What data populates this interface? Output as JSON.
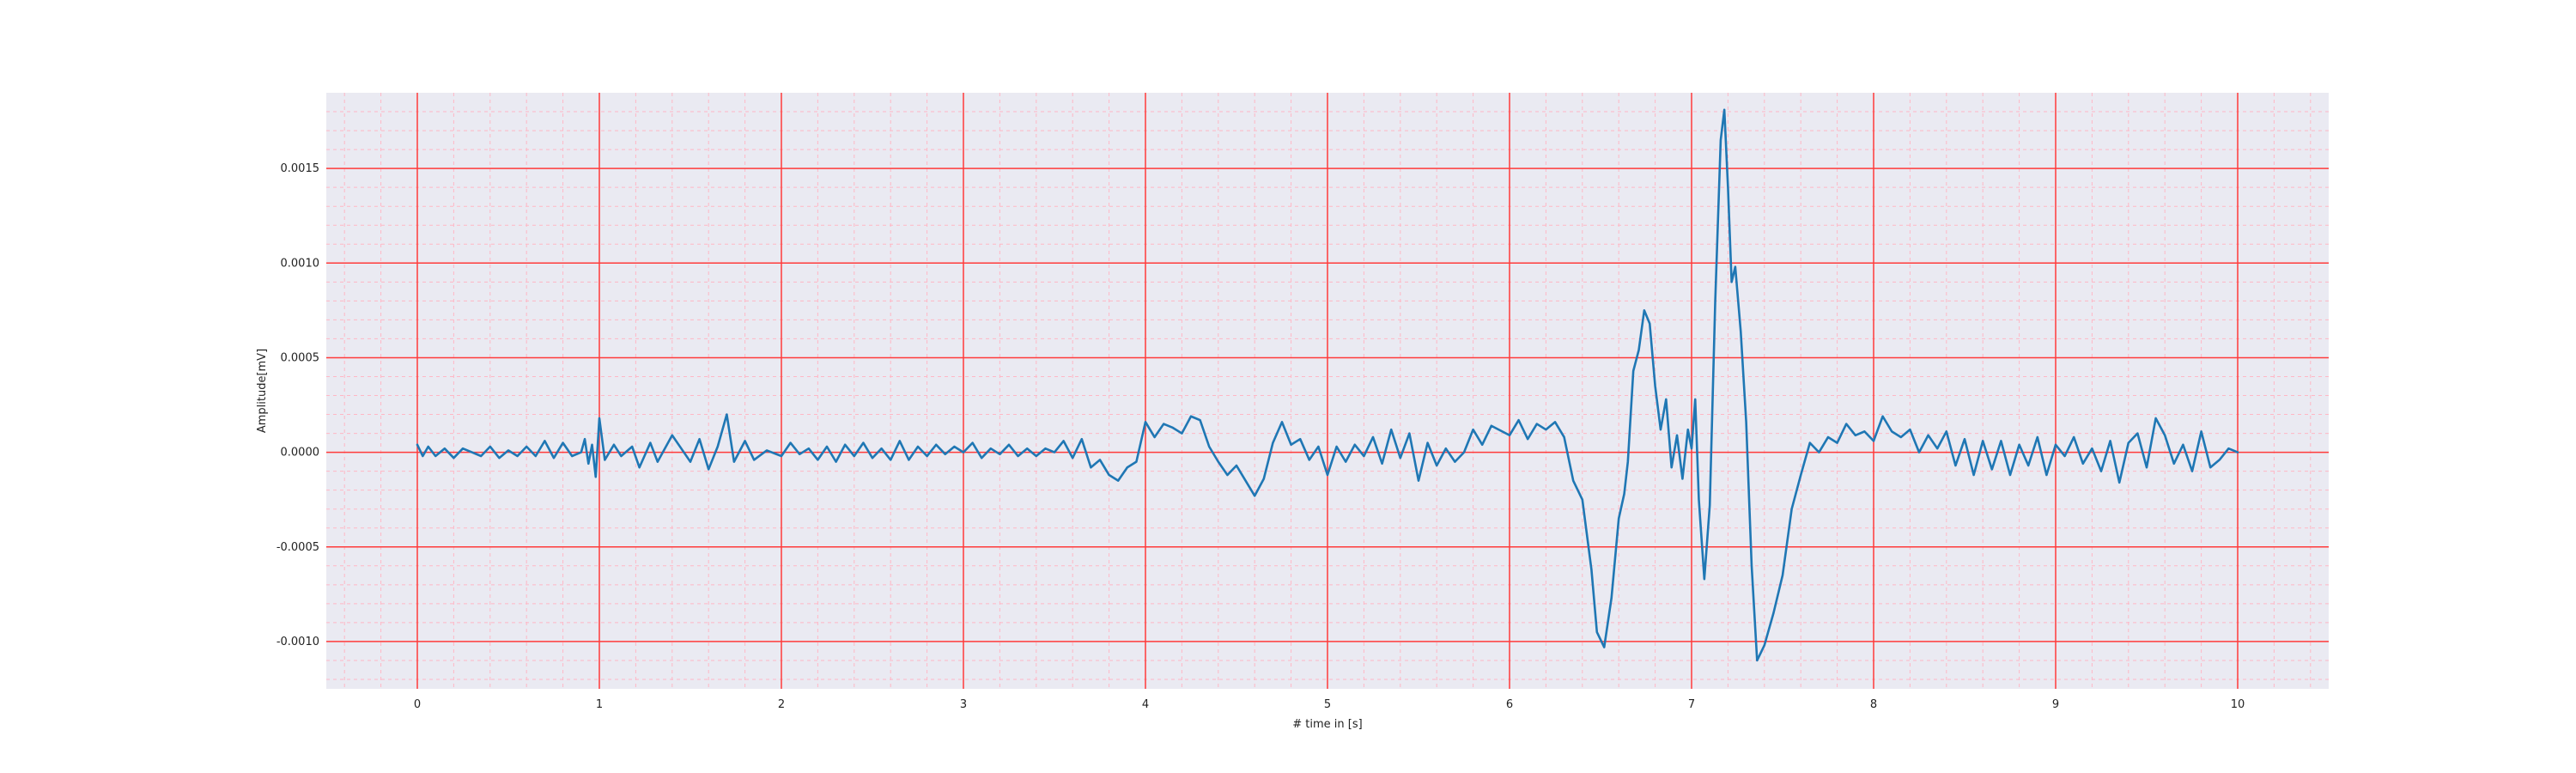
{
  "chart_data": {
    "type": "line",
    "title": "",
    "xlabel": "# time in [s]",
    "ylabel": "Amplitude[mV]",
    "xlim": [
      -0.5,
      10.5
    ],
    "ylim": [
      -0.00125,
      0.0019
    ],
    "x_ticks": [
      0,
      1,
      2,
      3,
      4,
      5,
      6,
      7,
      8,
      9,
      10
    ],
    "y_ticks": [
      -0.001,
      -0.0005,
      0.0,
      0.0005,
      0.001,
      0.0015
    ],
    "x_tick_labels": [
      "0",
      "1",
      "2",
      "3",
      "4",
      "5",
      "6",
      "7",
      "8",
      "9",
      "10"
    ],
    "y_tick_labels": [
      "-0.0010",
      "-0.0005",
      "0.0000",
      "0.0005",
      "0.0010",
      "0.0015"
    ],
    "grid": true,
    "minor_grid": true,
    "colors": {
      "background": "#eaeaf2",
      "major_grid": "#ff3b3b",
      "minor_grid": "#ffb7c5",
      "line": "#1f77b4"
    },
    "series": [
      {
        "name": "",
        "points": [
          [
            0.0,
            4e-05
          ],
          [
            0.03,
            -2e-05
          ],
          [
            0.06,
            3e-05
          ],
          [
            0.1,
            -2e-05
          ],
          [
            0.15,
            2e-05
          ],
          [
            0.2,
            -3e-05
          ],
          [
            0.25,
            2e-05
          ],
          [
            0.3,
            0.0
          ],
          [
            0.35,
            -2e-05
          ],
          [
            0.4,
            3e-05
          ],
          [
            0.45,
            -3e-05
          ],
          [
            0.5,
            1e-05
          ],
          [
            0.55,
            -2e-05
          ],
          [
            0.6,
            3e-05
          ],
          [
            0.65,
            -2e-05
          ],
          [
            0.7,
            6e-05
          ],
          [
            0.75,
            -3e-05
          ],
          [
            0.8,
            5e-05
          ],
          [
            0.85,
            -2e-05
          ],
          [
            0.9,
            0.0
          ],
          [
            0.92,
            7e-05
          ],
          [
            0.94,
            -6e-05
          ],
          [
            0.96,
            4e-05
          ],
          [
            0.98,
            -0.00013
          ],
          [
            1.0,
            0.00018
          ],
          [
            1.03,
            -4e-05
          ],
          [
            1.08,
            4e-05
          ],
          [
            1.12,
            -2e-05
          ],
          [
            1.18,
            3e-05
          ],
          [
            1.22,
            -8e-05
          ],
          [
            1.28,
            5e-05
          ],
          [
            1.32,
            -5e-05
          ],
          [
            1.4,
            9e-05
          ],
          [
            1.45,
            2e-05
          ],
          [
            1.5,
            -5e-05
          ],
          [
            1.55,
            7e-05
          ],
          [
            1.6,
            -9e-05
          ],
          [
            1.65,
            3e-05
          ],
          [
            1.7,
            0.0002
          ],
          [
            1.74,
            -5e-05
          ],
          [
            1.8,
            6e-05
          ],
          [
            1.85,
            -4e-05
          ],
          [
            1.92,
            1e-05
          ],
          [
            2.0,
            -2e-05
          ],
          [
            2.05,
            5e-05
          ],
          [
            2.1,
            -1e-05
          ],
          [
            2.15,
            2e-05
          ],
          [
            2.2,
            -4e-05
          ],
          [
            2.25,
            3e-05
          ],
          [
            2.3,
            -5e-05
          ],
          [
            2.35,
            4e-05
          ],
          [
            2.4,
            -2e-05
          ],
          [
            2.45,
            5e-05
          ],
          [
            2.5,
            -3e-05
          ],
          [
            2.55,
            2e-05
          ],
          [
            2.6,
            -4e-05
          ],
          [
            2.65,
            6e-05
          ],
          [
            2.7,
            -4e-05
          ],
          [
            2.75,
            3e-05
          ],
          [
            2.8,
            -2e-05
          ],
          [
            2.85,
            4e-05
          ],
          [
            2.9,
            -1e-05
          ],
          [
            2.95,
            3e-05
          ],
          [
            3.0,
            0.0
          ],
          [
            3.05,
            5e-05
          ],
          [
            3.1,
            -3e-05
          ],
          [
            3.15,
            2e-05
          ],
          [
            3.2,
            -1e-05
          ],
          [
            3.25,
            4e-05
          ],
          [
            3.3,
            -2e-05
          ],
          [
            3.35,
            2e-05
          ],
          [
            3.4,
            -2e-05
          ],
          [
            3.45,
            2e-05
          ],
          [
            3.5,
            0.0
          ],
          [
            3.55,
            6e-05
          ],
          [
            3.6,
            -3e-05
          ],
          [
            3.65,
            7e-05
          ],
          [
            3.7,
            -8e-05
          ],
          [
            3.75,
            -4e-05
          ],
          [
            3.8,
            -0.00012
          ],
          [
            3.85,
            -0.00015
          ],
          [
            3.9,
            -8e-05
          ],
          [
            3.95,
            -5e-05
          ],
          [
            4.0,
            0.00016
          ],
          [
            4.05,
            8e-05
          ],
          [
            4.1,
            0.00015
          ],
          [
            4.15,
            0.00013
          ],
          [
            4.2,
            0.0001
          ],
          [
            4.25,
            0.00019
          ],
          [
            4.3,
            0.00017
          ],
          [
            4.35,
            3e-05
          ],
          [
            4.4,
            -5e-05
          ],
          [
            4.45,
            -0.00012
          ],
          [
            4.5,
            -7e-05
          ],
          [
            4.55,
            -0.00015
          ],
          [
            4.6,
            -0.00023
          ],
          [
            4.65,
            -0.00014
          ],
          [
            4.7,
            5e-05
          ],
          [
            4.75,
            0.00016
          ],
          [
            4.8,
            4e-05
          ],
          [
            4.85,
            7e-05
          ],
          [
            4.9,
            -4e-05
          ],
          [
            4.95,
            3e-05
          ],
          [
            5.0,
            -0.00012
          ],
          [
            5.05,
            3e-05
          ],
          [
            5.1,
            -5e-05
          ],
          [
            5.15,
            4e-05
          ],
          [
            5.2,
            -2e-05
          ],
          [
            5.25,
            8e-05
          ],
          [
            5.3,
            -6e-05
          ],
          [
            5.35,
            0.00012
          ],
          [
            5.4,
            -3e-05
          ],
          [
            5.45,
            0.0001
          ],
          [
            5.5,
            -0.00015
          ],
          [
            5.55,
            5e-05
          ],
          [
            5.6,
            -7e-05
          ],
          [
            5.65,
            2e-05
          ],
          [
            5.7,
            -5e-05
          ],
          [
            5.75,
            0.0
          ],
          [
            5.8,
            0.00012
          ],
          [
            5.85,
            4e-05
          ],
          [
            5.9,
            0.00014
          ],
          [
            6.0,
            9e-05
          ],
          [
            6.05,
            0.00017
          ],
          [
            6.1,
            7e-05
          ],
          [
            6.15,
            0.00015
          ],
          [
            6.2,
            0.00012
          ],
          [
            6.25,
            0.00016
          ],
          [
            6.3,
            8e-05
          ],
          [
            6.35,
            -0.00015
          ],
          [
            6.4,
            -0.00025
          ],
          [
            6.45,
            -0.00062
          ],
          [
            6.48,
            -0.00095
          ],
          [
            6.52,
            -0.00103
          ],
          [
            6.56,
            -0.00077
          ],
          [
            6.6,
            -0.00035
          ],
          [
            6.63,
            -0.00022
          ],
          [
            6.65,
            -5e-05
          ],
          [
            6.68,
            0.00043
          ],
          [
            6.71,
            0.00054
          ],
          [
            6.74,
            0.00075
          ],
          [
            6.77,
            0.00068
          ],
          [
            6.8,
            0.00035
          ],
          [
            6.83,
            0.00012
          ],
          [
            6.86,
            0.00028
          ],
          [
            6.89,
            -8e-05
          ],
          [
            6.92,
            9e-05
          ],
          [
            6.95,
            -0.00014
          ],
          [
            6.98,
            0.00012
          ],
          [
            7.0,
            2e-05
          ],
          [
            7.02,
            0.00028
          ],
          [
            7.04,
            -0.00025
          ],
          [
            7.07,
            -0.00067
          ],
          [
            7.1,
            -0.00028
          ],
          [
            7.13,
            0.0008
          ],
          [
            7.16,
            0.00165
          ],
          [
            7.18,
            0.00181
          ],
          [
            7.2,
            0.0014
          ],
          [
            7.22,
            0.0009
          ],
          [
            7.24,
            0.00098
          ],
          [
            7.27,
            0.00064
          ],
          [
            7.3,
            0.00016
          ],
          [
            7.33,
            -0.0006
          ],
          [
            7.36,
            -0.0011
          ],
          [
            7.4,
            -0.00102
          ],
          [
            7.45,
            -0.00085
          ],
          [
            7.5,
            -0.00065
          ],
          [
            7.55,
            -0.0003
          ],
          [
            7.6,
            -0.00012
          ],
          [
            7.65,
            5e-05
          ],
          [
            7.7,
            0.0
          ],
          [
            7.75,
            8e-05
          ],
          [
            7.8,
            5e-05
          ],
          [
            7.85,
            0.00015
          ],
          [
            7.9,
            9e-05
          ],
          [
            7.95,
            0.00011
          ],
          [
            8.0,
            6e-05
          ],
          [
            8.05,
            0.00019
          ],
          [
            8.1,
            0.00011
          ],
          [
            8.15,
            8e-05
          ],
          [
            8.2,
            0.00012
          ],
          [
            8.25,
            0.0
          ],
          [
            8.3,
            9e-05
          ],
          [
            8.35,
            2e-05
          ],
          [
            8.4,
            0.00011
          ],
          [
            8.45,
            -7e-05
          ],
          [
            8.5,
            7e-05
          ],
          [
            8.55,
            -0.00012
          ],
          [
            8.6,
            6e-05
          ],
          [
            8.65,
            -9e-05
          ],
          [
            8.7,
            6e-05
          ],
          [
            8.75,
            -0.00012
          ],
          [
            8.8,
            4e-05
          ],
          [
            8.85,
            -7e-05
          ],
          [
            8.9,
            8e-05
          ],
          [
            8.95,
            -0.00012
          ],
          [
            9.0,
            4e-05
          ],
          [
            9.05,
            -2e-05
          ],
          [
            9.1,
            8e-05
          ],
          [
            9.15,
            -6e-05
          ],
          [
            9.2,
            2e-05
          ],
          [
            9.25,
            -0.0001
          ],
          [
            9.3,
            6e-05
          ],
          [
            9.35,
            -0.00016
          ],
          [
            9.4,
            5e-05
          ],
          [
            9.45,
            0.0001
          ],
          [
            9.5,
            -8e-05
          ],
          [
            9.55,
            0.00018
          ],
          [
            9.6,
            9e-05
          ],
          [
            9.65,
            -6e-05
          ],
          [
            9.7,
            4e-05
          ],
          [
            9.75,
            -0.0001
          ],
          [
            9.8,
            0.00011
          ],
          [
            9.85,
            -8e-05
          ],
          [
            9.9,
            -4e-05
          ],
          [
            9.95,
            2e-05
          ],
          [
            10.0,
            0.0
          ]
        ]
      }
    ]
  }
}
